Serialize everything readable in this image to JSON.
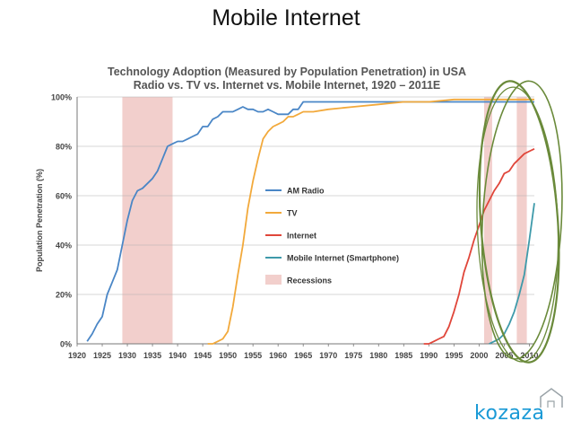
{
  "slide": {
    "title": "Mobile Internet"
  },
  "brand": {
    "name": "kozaza",
    "color": "#1a9ad6"
  },
  "chart_data": {
    "type": "line",
    "title_line1": "Technology Adoption (Measured by Population Penetration) in USA",
    "title_line2": "Radio vs. TV vs. Internet vs. Mobile Internet, 1920 – 2011E",
    "ylabel": "Population Penetration (%)",
    "xlabel": "",
    "xlim": [
      1920,
      2011
    ],
    "ylim": [
      0,
      100
    ],
    "x_ticks": [
      1920,
      1925,
      1930,
      1935,
      1940,
      1945,
      1950,
      1955,
      1960,
      1965,
      1970,
      1975,
      1980,
      1985,
      1990,
      1995,
      2000,
      2005,
      2010
    ],
    "x_tick_labels": [
      "1920",
      "1925",
      "1930",
      "1935",
      "1940",
      "1945",
      "1950",
      "1955",
      "1960",
      "1965",
      "1970",
      "1975",
      "1980",
      "1985",
      "1990",
      "1995",
      "2000",
      "2005",
      "2010"
    ],
    "y_ticks": [
      0,
      20,
      40,
      60,
      80,
      100
    ],
    "y_tick_labels": [
      "0%",
      "20%",
      "40%",
      "60%",
      "80%",
      "100%"
    ],
    "legend_position": "center-right",
    "recessions": [
      [
        1929,
        1939
      ],
      [
        2001,
        2002.6
      ],
      [
        2007.5,
        2009.5
      ]
    ],
    "recessions_label": "Recessions",
    "recessions_color": "#f2cfcc",
    "highlight_color": "#6a8a3a",
    "series": [
      {
        "name": "AM Radio",
        "color": "#4a86c6",
        "x": [
          1922,
          1923,
          1924,
          1925,
          1926,
          1927,
          1928,
          1929,
          1930,
          1931,
          1932,
          1933,
          1934,
          1935,
          1936,
          1937,
          1938,
          1939,
          1940,
          1941,
          1942,
          1943,
          1944,
          1945,
          1946,
          1947,
          1948,
          1949,
          1950,
          1951,
          1952,
          1953,
          1954,
          1955,
          1956,
          1957,
          1958,
          1959,
          1960,
          1961,
          1962,
          1963,
          1964,
          1965,
          1966,
          1970,
          1975,
          1980,
          1985,
          1990,
          1995,
          2000,
          2005,
          2011
        ],
        "values": [
          1,
          4,
          8,
          11,
          20,
          25,
          30,
          40,
          50,
          58,
          62,
          63,
          65,
          67,
          70,
          75,
          80,
          81,
          82,
          82,
          83,
          84,
          85,
          88,
          88,
          91,
          92,
          94,
          94,
          94,
          95,
          96,
          95,
          95,
          94,
          94,
          95,
          94,
          93,
          93,
          93,
          95,
          95,
          98,
          98,
          98,
          98,
          98,
          98,
          98,
          98,
          98,
          98,
          98
        ]
      },
      {
        "name": "TV",
        "color": "#f2a93b",
        "x": [
          1946,
          1947,
          1948,
          1949,
          1950,
          1951,
          1952,
          1953,
          1954,
          1955,
          1956,
          1957,
          1958,
          1959,
          1960,
          1961,
          1962,
          1963,
          1964,
          1965,
          1967,
          1970,
          1975,
          1980,
          1985,
          1990,
          1995,
          2000,
          2005,
          2011
        ],
        "values": [
          0,
          0,
          1,
          2,
          5,
          15,
          28,
          40,
          55,
          66,
          75,
          83,
          86,
          88,
          89,
          90,
          92,
          92,
          93,
          94,
          94,
          95,
          96,
          97,
          98,
          98,
          99,
          99,
          99,
          99
        ]
      },
      {
        "name": "Internet",
        "color": "#e0463a",
        "x": [
          1989,
          1990,
          1991,
          1992,
          1993,
          1994,
          1995,
          1996,
          1997,
          1998,
          1999,
          2000,
          2001,
          2002,
          2003,
          2004,
          2005,
          2006,
          2007,
          2008,
          2009,
          2010,
          2011
        ],
        "values": [
          0,
          0,
          1,
          2,
          3,
          7,
          13,
          20,
          29,
          35,
          42,
          48,
          54,
          58,
          62,
          65,
          69,
          70,
          73,
          75,
          77,
          78,
          79
        ]
      },
      {
        "name": "Mobile Internet (Smartphone)",
        "color": "#3e9aaa",
        "x": [
          2002,
          2003,
          2004,
          2005,
          2006,
          2007,
          2008,
          2009,
          2010,
          2011
        ],
        "values": [
          0,
          1,
          2,
          4,
          8,
          13,
          20,
          28,
          42,
          57
        ]
      }
    ]
  }
}
